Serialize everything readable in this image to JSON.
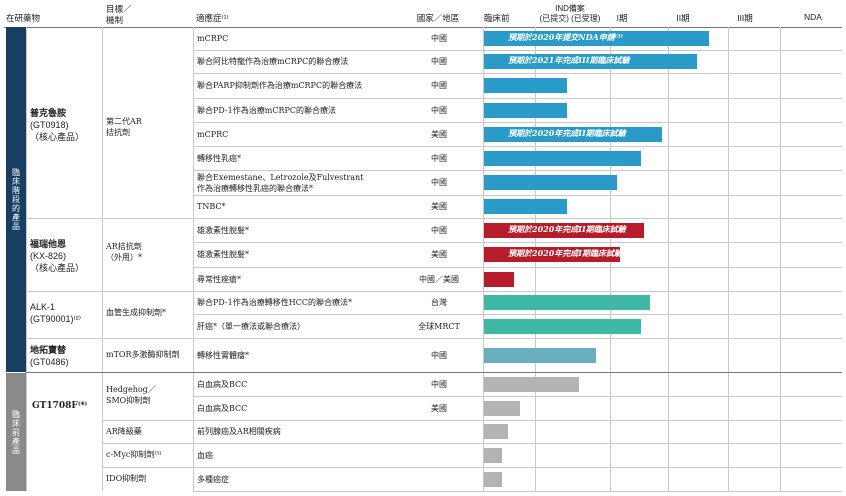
{
  "header": {
    "drug": "在研藥物",
    "target": "目標／\n機制",
    "indication": "適應症⁽¹⁾",
    "region": "國家／地區",
    "preclinical": "臨床前",
    "ind": "IND備案\n(已提交) (已受理)",
    "phase1": "I期",
    "phase2": "II期",
    "phase3": "III期",
    "nda": "NDA"
  },
  "side_labels": {
    "clinical": "臨床階段的產品",
    "preclinical": "臨床前產品"
  },
  "colors": {
    "blue": "#2a9bc9",
    "red": "#b71c2a",
    "teal": "#40b8a8",
    "steel": "#6aaec0",
    "gray": "#b3b3b3",
    "navy": "#163f63",
    "sideGray": "#8a8a8a"
  },
  "drugs": [
    {
      "name": "普克魯胺",
      "code": "(GT0918)",
      "note": "（核心產品）",
      "target": "第二代AR\n拮抗劑"
    },
    {
      "name": "福瑞他恩",
      "code": "(KX-826)",
      "note": "（核心產品）",
      "target": "AR拮抗劑\n（外用）*"
    },
    {
      "name": "ALK-1",
      "code": "(GT90001)⁽²⁾",
      "note": "",
      "target": "血管生成抑制劑*"
    },
    {
      "name": "地拓寶替",
      "code": "(GT0486)",
      "note": "",
      "target": "mTOR多激酶抑制劑"
    },
    {
      "name": "GT1708F⁽⁴⁾",
      "code": "",
      "note": "",
      "target": "Hedgehog／\nSMO抑制劑"
    },
    {
      "name": "",
      "code": "",
      "note": "",
      "target": "AR降級藥"
    },
    {
      "name": "",
      "code": "",
      "note": "",
      "target": "c-Myc抑制劑⁽⁵⁾"
    },
    {
      "name": "",
      "code": "",
      "note": "",
      "target": "IDO抑制劑"
    }
  ],
  "rows": [
    {
      "indication": "mCRPC",
      "region": "中國",
      "progress": 0.76,
      "color": "blue",
      "note": "預期於2020年提交NDA申請⁽³⁾"
    },
    {
      "indication": "聯合阿比特龍作為治療mCRPC的聯合療法",
      "region": "中國",
      "progress": 0.72,
      "color": "blue",
      "note": "預期於2021年完成III期臨床試驗"
    },
    {
      "indication": "聯合PARP抑制劑作為治療mCRPC的聯合療法",
      "region": "中國",
      "progress": 0.28,
      "color": "blue",
      "note": ""
    },
    {
      "indication": "聯合PD-1作為治療mCRPC的聯合療法",
      "region": "中國",
      "progress": 0.28,
      "color": "blue",
      "note": ""
    },
    {
      "indication": "mCPRC",
      "region": "美國",
      "progress": 0.6,
      "color": "blue",
      "note": "預期於2020年完成II期臨床試驗"
    },
    {
      "indication": "轉移性乳癌*",
      "region": "中國",
      "progress": 0.53,
      "color": "blue",
      "note": ""
    },
    {
      "indication": "聯合Exemestane、Letrozole及Fulvestrant\n作為治療轉移性乳癌的聯合療法*",
      "region": "中國",
      "progress": 0.45,
      "color": "blue",
      "note": ""
    },
    {
      "indication": "TNBC*",
      "region": "美國",
      "progress": 0.28,
      "color": "blue",
      "note": ""
    },
    {
      "indication": "雄激素性脫髮*",
      "region": "中國",
      "progress": 0.54,
      "color": "red",
      "note": "預期於2020年完成II期臨床試驗"
    },
    {
      "indication": "雄激素性脫髮*",
      "region": "美國",
      "progress": 0.46,
      "color": "red",
      "note": "預期於2020年完成I期臨床試驗"
    },
    {
      "indication": "尋常性痤瘡*",
      "region": "中國／美國",
      "progress": 0.1,
      "color": "red",
      "note": ""
    },
    {
      "indication": "聯合PD-1作為治療轉移性HCC的聯合療法*",
      "region": "台灣",
      "progress": 0.56,
      "color": "teal",
      "note": ""
    },
    {
      "indication": "肝癌*（單一療法或聯合療法）",
      "region": "全球MRCT",
      "progress": 0.53,
      "color": "teal",
      "note": ""
    },
    {
      "indication": "轉移性實體瘤*",
      "region": "中國",
      "progress": 0.38,
      "color": "steel",
      "note": ""
    },
    {
      "indication": "白血病及BCC",
      "region": "中國",
      "progress": 0.32,
      "color": "gray",
      "note": ""
    },
    {
      "indication": "白血病及BCC",
      "region": "美國",
      "progress": 0.12,
      "color": "gray",
      "note": ""
    },
    {
      "indication": "前列腺癌及AR相關疾病",
      "region": "",
      "progress": 0.08,
      "color": "gray",
      "note": ""
    },
    {
      "indication": "血癌",
      "region": "",
      "progress": 0.06,
      "color": "gray",
      "note": ""
    },
    {
      "indication": "多種癌症",
      "region": "",
      "progress": 0.06,
      "color": "gray",
      "note": ""
    }
  ]
}
